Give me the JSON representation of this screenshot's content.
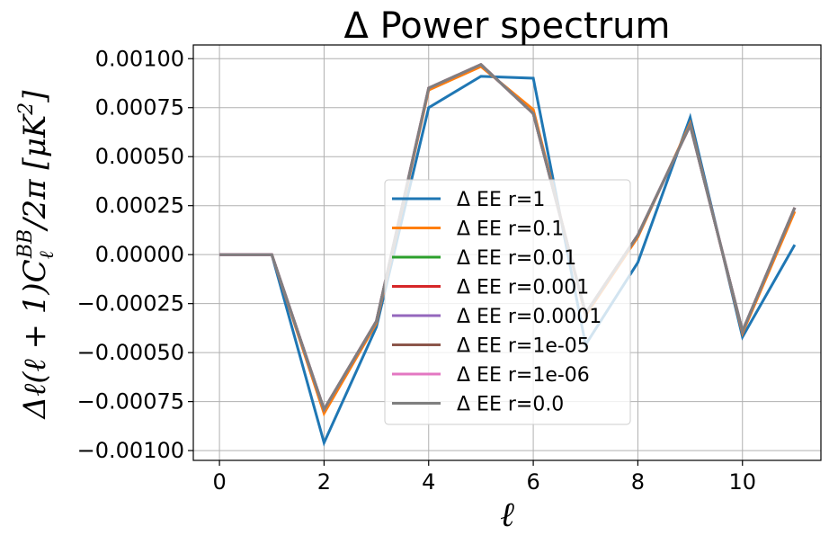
{
  "chart_data": {
    "type": "line",
    "title": "Δ Power spectrum",
    "xlabel": "ℓ",
    "ylabel": "Δℓ(ℓ + 1)C_ℓ^BB/2π [μK²]",
    "ylabel_parts": {
      "prefix": "Δℓ(ℓ + 1)C",
      "sub": "ℓ",
      "sup": "BB",
      "mid": "/2π [μK",
      "sup2": "2",
      "suffix": "]"
    },
    "xlim": [
      -0.5,
      11.5
    ],
    "ylim": [
      -0.00105,
      0.00107
    ],
    "x_ticks": [
      0,
      2,
      4,
      6,
      8,
      10
    ],
    "x_tick_labels": [
      "0",
      "2",
      "4",
      "6",
      "8",
      "10"
    ],
    "y_ticks": [
      0.001,
      0.00075,
      0.0005,
      0.00025,
      0.0,
      -0.00025,
      -0.0005,
      -0.00075,
      -0.001
    ],
    "y_tick_labels": [
      "0.00100",
      "0.00075",
      "0.00050",
      "0.00025",
      "0.00000",
      "−0.00025",
      "−0.00050",
      "−0.00075",
      "−0.00100"
    ],
    "grid": true,
    "legend_position": "lower-center",
    "x": [
      0,
      1,
      2,
      3,
      4,
      5,
      6,
      7,
      8,
      9,
      10,
      11
    ],
    "series": [
      {
        "name": "Δ EE r=1",
        "color": "#1f77b4",
        "values": [
          0,
          0,
          -0.00096,
          -0.00037,
          0.00075,
          0.00091,
          0.0009,
          -0.00046,
          -4e-05,
          0.0007,
          -0.00042,
          5e-05
        ]
      },
      {
        "name": "Δ EE r=0.1",
        "color": "#ff7f0e",
        "values": [
          0,
          0,
          -0.00081,
          -0.00035,
          0.00084,
          0.00096,
          0.00074,
          -0.00031,
          9e-05,
          0.00067,
          -0.0004,
          0.00022
        ]
      },
      {
        "name": "Δ EE r=0.01",
        "color": "#2ca02c",
        "values": [
          0,
          0,
          -0.00079,
          -0.00034,
          0.00085,
          0.00097,
          0.00072,
          -0.0003,
          0.0001,
          0.00066,
          -0.00039,
          0.00024
        ]
      },
      {
        "name": "Δ EE r=0.001",
        "color": "#d62728",
        "values": [
          0,
          0,
          -0.00079,
          -0.00034,
          0.00085,
          0.00097,
          0.00072,
          -0.0003,
          0.0001,
          0.00066,
          -0.00039,
          0.00024
        ]
      },
      {
        "name": "Δ EE r=0.0001",
        "color": "#9467bd",
        "values": [
          0,
          0,
          -0.00079,
          -0.00034,
          0.00085,
          0.00097,
          0.00072,
          -0.0003,
          0.0001,
          0.00066,
          -0.00039,
          0.00024
        ]
      },
      {
        "name": "Δ EE r=1e-05",
        "color": "#8c564b",
        "values": [
          0,
          0,
          -0.00079,
          -0.00034,
          0.00085,
          0.00097,
          0.00072,
          -0.0003,
          0.0001,
          0.00066,
          -0.00039,
          0.00024
        ]
      },
      {
        "name": "Δ EE r=1e-06",
        "color": "#e377c2",
        "values": [
          0,
          0,
          -0.00079,
          -0.00034,
          0.00085,
          0.00097,
          0.00072,
          -0.0003,
          0.0001,
          0.00066,
          -0.00039,
          0.00024
        ]
      },
      {
        "name": "Δ EE r=0.0",
        "color": "#7f7f7f",
        "values": [
          0,
          0,
          -0.00079,
          -0.00034,
          0.00085,
          0.00097,
          0.00072,
          -0.0003,
          0.0001,
          0.00066,
          -0.00039,
          0.00024
        ]
      }
    ]
  }
}
